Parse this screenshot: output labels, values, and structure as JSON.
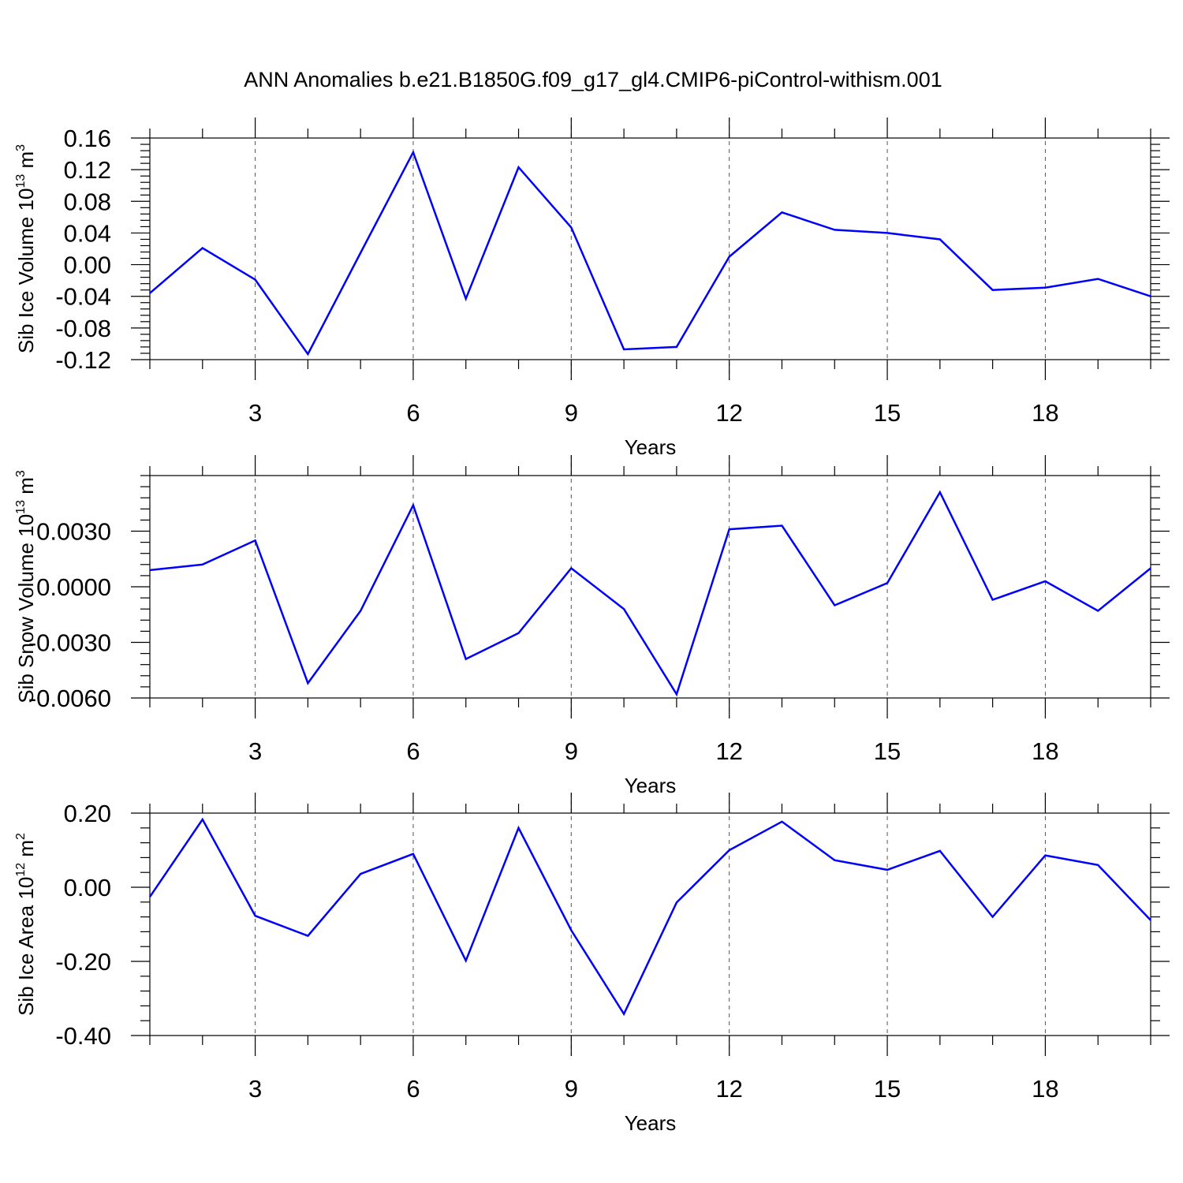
{
  "title": "ANN Anomalies b.e21.B1850G.f09_g17_gl4.CMIP6-piControl-withism.001",
  "chart_data": [
    {
      "type": "line",
      "title": "",
      "ylabel": "Sib Ice Volume 10",
      "ylabel_exp": "13",
      "ylabel_unit": " m",
      "ylabel_unit_exp": "3",
      "xlabel": "Years",
      "xlim": [
        1,
        20
      ],
      "ylim": [
        -0.12,
        0.16
      ],
      "xticks": [
        3,
        6,
        9,
        12,
        15,
        18
      ],
      "xtick_labels": [
        "3",
        "6",
        "9",
        "12",
        "15",
        "18"
      ],
      "yticks": [
        -0.12,
        -0.08,
        -0.04,
        0.0,
        0.04,
        0.08,
        0.12,
        0.16
      ],
      "ytick_labels": [
        "-0.12",
        "-0.08",
        "-0.04",
        "0.00",
        "0.04",
        "0.08",
        "0.12",
        "0.16"
      ],
      "grid_x": true,
      "color": "#0000ff",
      "x": [
        1,
        2,
        3,
        4,
        5,
        6,
        7,
        8,
        9,
        10,
        11,
        12,
        13,
        14,
        15,
        16,
        17,
        18,
        19,
        20
      ],
      "values": [
        -0.036,
        0.021,
        -0.019,
        -0.113,
        0.015,
        0.142,
        -0.043,
        0.123,
        0.047,
        -0.107,
        -0.104,
        0.01,
        0.066,
        0.044,
        0.04,
        0.032,
        -0.032,
        -0.029,
        -0.018,
        -0.04
      ]
    },
    {
      "type": "line",
      "title": "",
      "ylabel": "Sib Snow Volume 10",
      "ylabel_exp": "13",
      "ylabel_unit": " m",
      "ylabel_unit_exp": "3",
      "xlabel": "Years",
      "xlim": [
        1,
        20
      ],
      "ylim": [
        -0.006,
        0.006
      ],
      "xticks": [
        3,
        6,
        9,
        12,
        15,
        18
      ],
      "xtick_labels": [
        "3",
        "6",
        "9",
        "12",
        "15",
        "18"
      ],
      "yticks": [
        -0.006,
        -0.003,
        0.0,
        0.003
      ],
      "ytick_labels": [
        "-0.0060",
        "-0.0030",
        "0.0000",
        "0.0030"
      ],
      "grid_x": true,
      "color": "#0000ff",
      "x": [
        1,
        2,
        3,
        4,
        5,
        6,
        7,
        8,
        9,
        10,
        11,
        12,
        13,
        14,
        15,
        16,
        17,
        18,
        19,
        20
      ],
      "values": [
        0.0009,
        0.0012,
        0.0025,
        -0.0052,
        -0.0013,
        0.0044,
        -0.0039,
        -0.0025,
        0.001,
        -0.0012,
        -0.0058,
        0.0031,
        0.0033,
        -0.001,
        0.0002,
        0.0051,
        -0.0007,
        0.0003,
        -0.0013,
        0.001
      ]
    },
    {
      "type": "line",
      "title": "",
      "ylabel": "Sib Ice Area 10",
      "ylabel_exp": "12",
      "ylabel_unit": " m",
      "ylabel_unit_exp": "2",
      "xlabel": "Years",
      "xlim": [
        1,
        20
      ],
      "ylim": [
        -0.4,
        0.2
      ],
      "xticks": [
        3,
        6,
        9,
        12,
        15,
        18
      ],
      "xtick_labels": [
        "3",
        "6",
        "9",
        "12",
        "15",
        "18"
      ],
      "yticks": [
        -0.4,
        -0.2,
        0.0,
        0.2
      ],
      "ytick_labels": [
        "-0.40",
        "-0.20",
        "0.00",
        "0.20"
      ],
      "grid_x": true,
      "color": "#0000ff",
      "x": [
        1,
        2,
        3,
        4,
        5,
        6,
        7,
        8,
        9,
        10,
        11,
        12,
        13,
        14,
        15,
        16,
        17,
        18,
        19,
        20
      ],
      "values": [
        -0.026,
        0.183,
        -0.077,
        -0.131,
        0.036,
        0.09,
        -0.198,
        0.16,
        -0.116,
        -0.342,
        -0.041,
        0.1,
        0.177,
        0.073,
        0.047,
        0.098,
        -0.08,
        0.086,
        0.06,
        -0.089
      ]
    }
  ]
}
